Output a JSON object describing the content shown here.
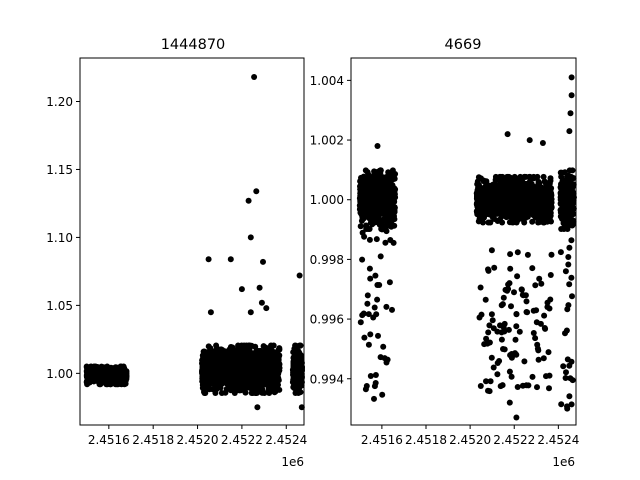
{
  "chart_data": [
    {
      "type": "scatter",
      "title": "1444870",
      "xlim": [
        2451470,
        2452480
      ],
      "ylim": [
        0.962,
        1.232
      ],
      "x_offset_label": "1e6",
      "xticks": [
        {
          "value": 2451600,
          "label": "2.4516"
        },
        {
          "value": 2451800,
          "label": "2.4518"
        },
        {
          "value": 2452000,
          "label": "2.4520"
        },
        {
          "value": 2452200,
          "label": "2.4522"
        },
        {
          "value": 2452400,
          "label": "2.4524"
        }
      ],
      "yticks": [
        {
          "value": 1.0,
          "label": "1.00"
        },
        {
          "value": 1.05,
          "label": "1.05"
        },
        {
          "value": 1.1,
          "label": "1.10"
        },
        {
          "value": 1.15,
          "label": "1.15"
        },
        {
          "value": 1.2,
          "label": "1.20"
        }
      ],
      "marker_color": "#000000",
      "clusters": [
        {
          "x_range": [
            2451500,
            2451680
          ],
          "y_center": 0.9985,
          "y_spread": 0.006,
          "count": 700
        },
        {
          "x_range": [
            2452020,
            2452370
          ],
          "y_center": 1.003,
          "y_spread": 0.016,
          "count": 1600
        },
        {
          "x_range": [
            2452430,
            2452480
          ],
          "y_center": 1.003,
          "y_spread": 0.016,
          "count": 300
        }
      ],
      "outliers": [
        [
          2452050,
          1.084
        ],
        [
          2452150,
          1.084
        ],
        [
          2452200,
          1.062
        ],
        [
          2452230,
          1.127
        ],
        [
          2452240,
          1.1
        ],
        [
          2452255,
          1.218
        ],
        [
          2452265,
          1.134
        ],
        [
          2452280,
          1.063
        ],
        [
          2452290,
          1.052
        ],
        [
          2452295,
          1.082
        ],
        [
          2452310,
          1.048
        ],
        [
          2452460,
          1.072
        ],
        [
          2452270,
          0.975
        ],
        [
          2452470,
          0.975
        ],
        [
          2452240,
          1.045
        ],
        [
          2452060,
          1.045
        ]
      ]
    },
    {
      "type": "scatter",
      "title": "4669",
      "xlim": [
        2451460,
        2452480
      ],
      "ylim": [
        0.99245,
        1.00475
      ],
      "x_offset_label": "1e6",
      "xticks": [
        {
          "value": 2451600,
          "label": "2.4516"
        },
        {
          "value": 2451800,
          "label": "2.4518"
        },
        {
          "value": 2452000,
          "label": "2.4520"
        },
        {
          "value": 2452200,
          "label": "2.4522"
        },
        {
          "value": 2452400,
          "label": "2.4524"
        }
      ],
      "yticks": [
        {
          "value": 0.994,
          "label": "0.994"
        },
        {
          "value": 0.996,
          "label": "0.996"
        },
        {
          "value": 0.998,
          "label": "0.998"
        },
        {
          "value": 1.0,
          "label": "1.000"
        },
        {
          "value": 1.002,
          "label": "1.002"
        },
        {
          "value": 1.004,
          "label": "1.004"
        }
      ],
      "marker_color": "#000000",
      "clusters": [
        {
          "x_range": [
            2451500,
            2451660
          ],
          "y_center": 1.0,
          "y_spread": 0.0009,
          "count": 650
        },
        {
          "x_range": [
            2452030,
            2452370
          ],
          "y_center": 1.0,
          "y_spread": 0.0007,
          "count": 1300
        },
        {
          "x_range": [
            2452410,
            2452470
          ],
          "y_center": 1.0,
          "y_spread": 0.0009,
          "count": 250
        }
      ],
      "outlier_bands": [
        {
          "x_range": [
            2451500,
            2451660
          ],
          "y_range": [
            0.9932,
            0.9998
          ],
          "count": 55
        },
        {
          "x_range": [
            2452030,
            2452370
          ],
          "y_range": [
            0.9935,
            0.9985
          ],
          "count": 110
        },
        {
          "x_range": [
            2452410,
            2452470
          ],
          "y_range": [
            0.9929,
            0.999
          ],
          "count": 25
        }
      ],
      "outliers": [
        [
          2452460,
          1.0041
        ],
        [
          2452460,
          1.0035
        ],
        [
          2452455,
          1.0029
        ],
        [
          2452450,
          1.0023
        ],
        [
          2452170,
          1.0022
        ],
        [
          2452270,
          1.002
        ],
        [
          2452330,
          1.0019
        ],
        [
          2451580,
          1.0018
        ],
        [
          2452210,
          0.9927
        ],
        [
          2452440,
          0.993
        ],
        [
          2452180,
          0.9932
        ]
      ]
    }
  ]
}
